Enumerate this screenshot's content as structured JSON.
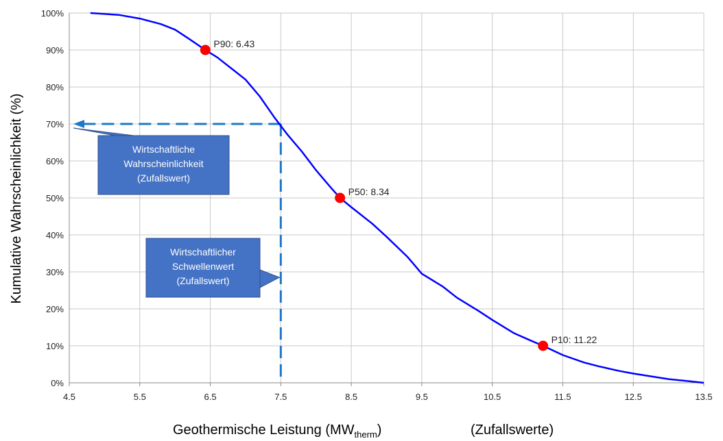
{
  "chart_data": {
    "type": "line",
    "title": "",
    "xlabel": "Geothermische Leistung (MW",
    "xlabel_sub": "therm",
    "xlabel_tail": ")",
    "xlabel_note": "(Zufallswerte)",
    "ylabel": "Kumulative Wahrscheinlichkeit (%)",
    "xlim": [
      4.5,
      13.5
    ],
    "ylim": [
      0,
      100
    ],
    "x_ticks": [
      "4.5",
      "5.5",
      "6.5",
      "7.5",
      "8.5",
      "9.5",
      "10.5",
      "11.5",
      "12.5",
      "13.5"
    ],
    "y_ticks": [
      "0%",
      "10%",
      "20%",
      "30%",
      "40%",
      "50%",
      "60%",
      "70%",
      "80%",
      "90%",
      "100%"
    ],
    "grid": true,
    "series": [
      {
        "color": "#0000ff",
        "x": [
          4.8,
          5.2,
          5.5,
          5.8,
          6.0,
          6.2,
          6.43,
          6.6,
          6.8,
          7.0,
          7.2,
          7.4,
          7.5,
          7.6,
          7.8,
          8.0,
          8.2,
          8.34,
          8.5,
          8.8,
          9.0,
          9.3,
          9.5,
          9.8,
          10.0,
          10.3,
          10.5,
          10.8,
          11.0,
          11.22,
          11.5,
          11.8,
          12.0,
          12.3,
          12.5,
          12.8,
          13.0,
          13.3,
          13.5
        ],
        "y": [
          100,
          99.5,
          98.5,
          97,
          95.5,
          93,
          90,
          88,
          85,
          82,
          77.5,
          72,
          69.5,
          67,
          62.5,
          57.5,
          53,
          50,
          47.5,
          43,
          39.5,
          34,
          29.5,
          26,
          23,
          19.5,
          17,
          13.5,
          11.8,
          10,
          7.5,
          5.5,
          4.5,
          3.2,
          2.5,
          1.6,
          1.0,
          0.4,
          0
        ]
      }
    ],
    "markers": [
      {
        "x": 6.43,
        "y": 90,
        "label": "P90: 6.43"
      },
      {
        "x": 8.34,
        "y": 50,
        "label": "P50: 8.34"
      },
      {
        "x": 11.22,
        "y": 10,
        "label": "P10: 11.22"
      }
    ],
    "guide": {
      "x": 7.5,
      "y": 70,
      "color": "#1f77c8"
    },
    "callouts": [
      {
        "lines": [
          "Wirtschaftliche",
          "Wahrscheinlichkeit",
          "(Zufallswert)"
        ],
        "fill": "#4472c4"
      },
      {
        "lines": [
          "Wirtschaftlicher",
          "Schwellenwert",
          "(Zufallswert)"
        ],
        "fill": "#4472c4"
      }
    ],
    "marker_color": "#ff0000"
  }
}
